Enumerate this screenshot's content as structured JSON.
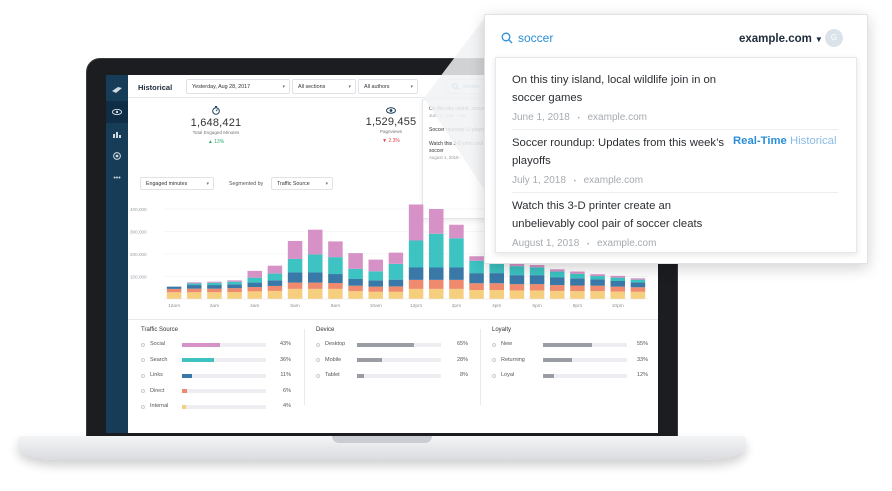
{
  "sidebar": {
    "icons": [
      "logo-icon",
      "eye-icon",
      "bar-chart-icon",
      "target-icon",
      "more-icon"
    ],
    "more_label": "•••"
  },
  "topbar": {
    "title": "Historical",
    "date_select": "Yesterday, Aug 28, 2017",
    "sections_select": "All sections",
    "authors_select": "All authors",
    "search_value": "soccer"
  },
  "kpis": [
    {
      "value": "1,648,421",
      "label": "Total Engaged Minutes",
      "change": "▲ 13%",
      "direction": "up"
    },
    {
      "value": "1,529,455",
      "label": "Pageviews",
      "change": "▼ 2.3%",
      "direction": "down"
    }
  ],
  "mini_results": [
    {
      "title": "On this tiny island, soccer games",
      "meta": "June 1, 2018 · exa"
    },
    {
      "title": "Soccer roundup: U playoffs",
      "meta": ""
    },
    {
      "title": "Watch this 3-D print cool pair of soccer",
      "meta": "August 1, 2018 ·"
    }
  ],
  "controls": {
    "metric_select": "Engaged minutes",
    "segmented_label": "Segmented by",
    "segment_select": "Traffic Source"
  },
  "chart_data": {
    "type": "bar",
    "stacked": true,
    "title": "",
    "xlabel": "",
    "ylabel": "",
    "ylim": [
      0,
      400000
    ],
    "y_ticks": [
      "400,000",
      "300,000",
      "200,000",
      "100,000"
    ],
    "x_tick_labels": [
      "12am",
      "2am",
      "4am",
      "6am",
      "8am",
      "10am",
      "12pm",
      "2pm",
      "4pm",
      "6pm",
      "8pm",
      "10pm"
    ],
    "grid": true,
    "legend": "none",
    "series_order": [
      "Internal",
      "Direct",
      "Links",
      "Search",
      "Social"
    ],
    "colors": {
      "Internal": "#f5cf7e",
      "Direct": "#ef8a6f",
      "Links": "#3a78a8",
      "Search": "#3cc3c2",
      "Social": "#d692c6"
    },
    "bars": [
      {
        "x": "12am",
        "Internal": 30000,
        "Direct": 15000,
        "Links": 10000,
        "Search": 0,
        "Social": 0
      },
      {
        "x": "1am",
        "Internal": 30000,
        "Direct": 16000,
        "Links": 16000,
        "Search": 7000,
        "Social": 5000
      },
      {
        "x": "2am",
        "Internal": 30000,
        "Direct": 16000,
        "Links": 16000,
        "Search": 10000,
        "Social": 5000
      },
      {
        "x": "3am",
        "Internal": 31000,
        "Direct": 17000,
        "Links": 17000,
        "Search": 12000,
        "Social": 6000
      },
      {
        "x": "4am",
        "Internal": 34000,
        "Direct": 19000,
        "Links": 20000,
        "Search": 22000,
        "Social": 30000
      },
      {
        "x": "5am",
        "Internal": 36000,
        "Direct": 22000,
        "Links": 25000,
        "Search": 30000,
        "Social": 35000
      },
      {
        "x": "6am",
        "Internal": 45000,
        "Direct": 28000,
        "Links": 45000,
        "Search": 60000,
        "Social": 80000
      },
      {
        "x": "7am",
        "Internal": 45000,
        "Direct": 28000,
        "Links": 45000,
        "Search": 80000,
        "Social": 110000
      },
      {
        "x": "8am",
        "Internal": 45000,
        "Direct": 26000,
        "Links": 40000,
        "Search": 75000,
        "Social": 70000
      },
      {
        "x": "9am",
        "Internal": 35000,
        "Direct": 24000,
        "Links": 30000,
        "Search": 45000,
        "Social": 70000
      },
      {
        "x": "10am",
        "Internal": 32000,
        "Direct": 23000,
        "Links": 28000,
        "Search": 40000,
        "Social": 52000
      },
      {
        "x": "11am",
        "Internal": 32000,
        "Direct": 24000,
        "Links": 30000,
        "Search": 70000,
        "Social": 50000
      },
      {
        "x": "12pm",
        "Internal": 45000,
        "Direct": 40000,
        "Links": 55000,
        "Search": 120000,
        "Social": 160000
      },
      {
        "x": "1pm",
        "Internal": 45000,
        "Direct": 40000,
        "Links": 55000,
        "Search": 150000,
        "Social": 110000
      },
      {
        "x": "2pm",
        "Internal": 45000,
        "Direct": 40000,
        "Links": 55000,
        "Search": 130000,
        "Social": 60000
      },
      {
        "x": "3pm",
        "Internal": 40000,
        "Direct": 30000,
        "Links": 45000,
        "Search": 55000,
        "Social": 20000
      },
      {
        "x": "4pm",
        "Internal": 40000,
        "Direct": 30000,
        "Links": 45000,
        "Search": 50000,
        "Social": 15000
      },
      {
        "x": "5pm",
        "Internal": 38000,
        "Direct": 28000,
        "Links": 40000,
        "Search": 40000,
        "Social": 12000
      },
      {
        "x": "6pm",
        "Internal": 38000,
        "Direct": 28000,
        "Links": 40000,
        "Search": 35000,
        "Social": 10000
      },
      {
        "x": "7pm",
        "Internal": 36000,
        "Direct": 26000,
        "Links": 35000,
        "Search": 25000,
        "Social": 10000
      },
      {
        "x": "8pm",
        "Internal": 35000,
        "Direct": 25000,
        "Links": 32000,
        "Search": 20000,
        "Social": 10000
      },
      {
        "x": "9pm",
        "Internal": 35000,
        "Direct": 24000,
        "Links": 28000,
        "Search": 15000,
        "Social": 8000
      },
      {
        "x": "10pm",
        "Internal": 33000,
        "Direct": 22000,
        "Links": 25000,
        "Search": 15000,
        "Social": 8000
      },
      {
        "x": "11pm",
        "Internal": 32000,
        "Direct": 20000,
        "Links": 22000,
        "Search": 12000,
        "Social": 6000
      }
    ]
  },
  "breakdowns": [
    {
      "title": "Traffic Source",
      "rows": [
        {
          "label": "Social",
          "pct": "43%",
          "fraction": 0.43,
          "color": "#d692c6"
        },
        {
          "label": "Search",
          "pct": "36%",
          "fraction": 0.36,
          "color": "#3cc3c2"
        },
        {
          "label": "Links",
          "pct": "11%",
          "fraction": 0.11,
          "color": "#3a78a8"
        },
        {
          "label": "Direct",
          "pct": "6%",
          "fraction": 0.06,
          "color": "#ef8a6f"
        },
        {
          "label": "Internal",
          "pct": "4%",
          "fraction": 0.04,
          "color": "#f5cf7e"
        }
      ]
    },
    {
      "title": "Device",
      "rows": [
        {
          "label": "Desktop",
          "pct": "65%",
          "fraction": 0.65,
          "color": "#9a9ea4"
        },
        {
          "label": "Mobile",
          "pct": "28%",
          "fraction": 0.28,
          "color": "#9a9ea4"
        },
        {
          "label": "Tablet",
          "pct": "8%",
          "fraction": 0.08,
          "color": "#9a9ea4"
        }
      ]
    },
    {
      "title": "Loyalty",
      "rows": [
        {
          "label": "New",
          "pct": "55%",
          "fraction": 0.55,
          "color": "#9a9ea4"
        },
        {
          "label": "Returning",
          "pct": "33%",
          "fraction": 0.33,
          "color": "#9a9ea4"
        },
        {
          "label": "Loyal",
          "pct": "12%",
          "fraction": 0.12,
          "color": "#9a9ea4"
        }
      ]
    }
  ],
  "popover": {
    "search_value": "soccer",
    "domain": "example.com",
    "avatar_letter": "G",
    "results": [
      {
        "title": "On this tiny island, local wildlife join in on soccer games",
        "date": "June 1, 2018",
        "site": "example.com"
      },
      {
        "title": "Soccer roundup: Updates from this week’s playoffs",
        "date": "July 1, 2018",
        "site": "example.com"
      },
      {
        "title": "Watch this 3-D printer create an unbelievably cool pair of soccer cleats",
        "date": "August 1, 2018",
        "site": "example.com"
      }
    ],
    "realtime_label": "Real-Time",
    "historical_label": "Historical",
    "separator": "•"
  },
  "colors": {
    "accent": "#2a8fd8",
    "sidebar": "#173c57"
  }
}
